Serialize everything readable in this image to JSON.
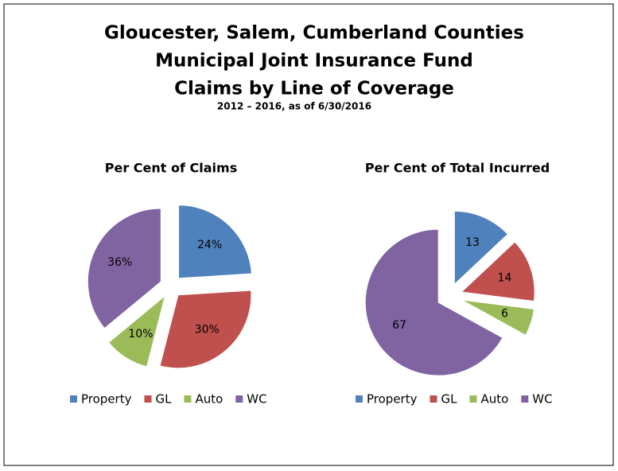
{
  "title": [
    "Gloucester, Salem, Cumberland  Counties",
    "Municipal Joint Insurance Fund",
    "Claims by Line of Coverage"
  ],
  "subtitle": "2012 – 2016, as of 6/30/2016",
  "chart_data": [
    {
      "type": "pie",
      "title": "Per Cent of Claims",
      "categories": [
        "Property",
        "GL",
        "Auto",
        "WC"
      ],
      "values": [
        24,
        30,
        10,
        36
      ],
      "value_labels": [
        "24%",
        "30%",
        "10%",
        "36%"
      ],
      "colors": [
        "#4f81bd",
        "#c0504d",
        "#9bbb59",
        "#8064a2"
      ],
      "legend": "bottom"
    },
    {
      "type": "pie",
      "title": "Per Cent of Total Incurred",
      "categories": [
        "Property",
        "GL",
        "Auto",
        "WC"
      ],
      "values": [
        13,
        14,
        6,
        67
      ],
      "colors": [
        "#4f81bd",
        "#c0504d",
        "#9bbb59",
        "#8064a2"
      ],
      "legend": "bottom"
    }
  ]
}
